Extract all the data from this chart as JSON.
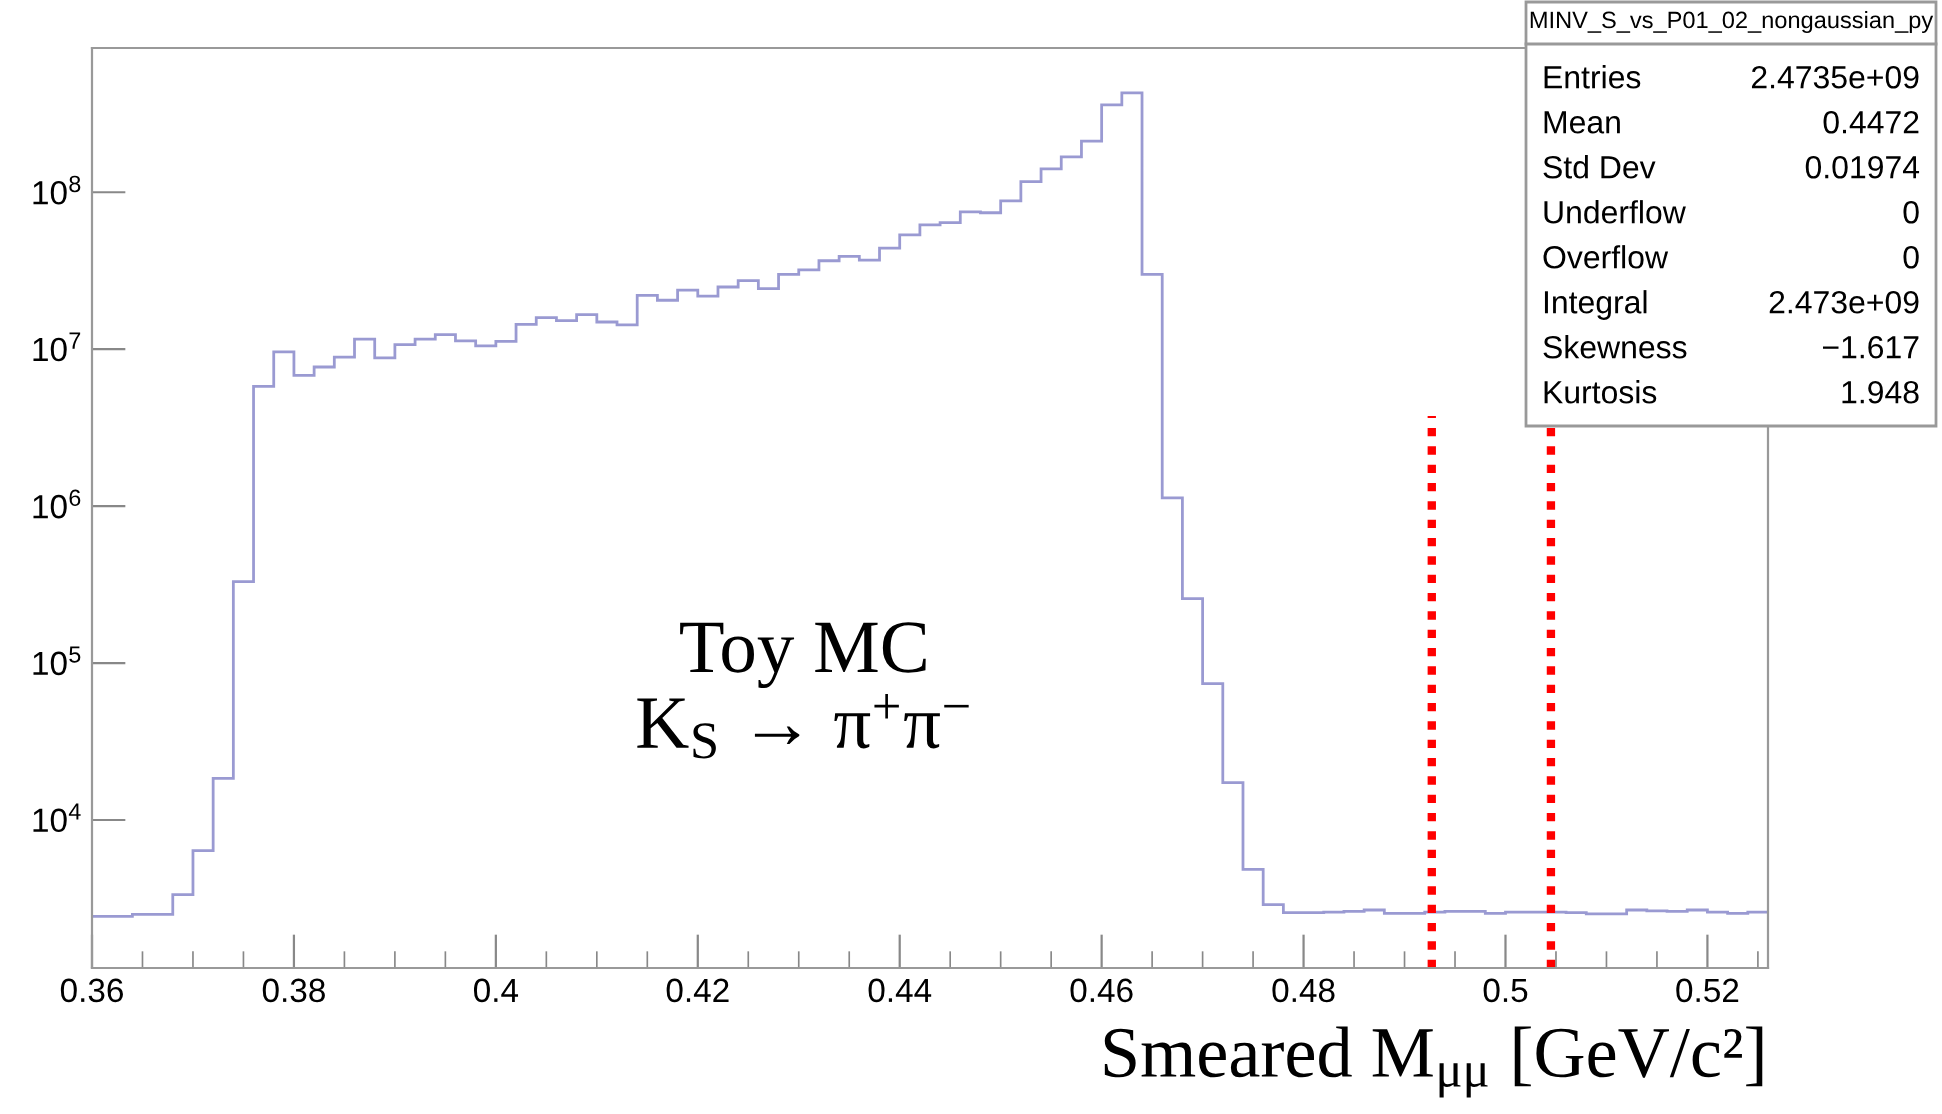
{
  "chart_data": {
    "type": "histogram",
    "xlabel": "Smeared M$_{μμ}$ [GeV/c²]",
    "bins": [
      0.36,
      0.362,
      0.364,
      0.366,
      0.368,
      0.37,
      0.372,
      0.374,
      0.376,
      0.378,
      0.38,
      0.382,
      0.384,
      0.386,
      0.388,
      0.39,
      0.392,
      0.394,
      0.396,
      0.398,
      0.4,
      0.402,
      0.404,
      0.406,
      0.408,
      0.41,
      0.412,
      0.414,
      0.416,
      0.418,
      0.42,
      0.422,
      0.424,
      0.426,
      0.428,
      0.43,
      0.432,
      0.434,
      0.436,
      0.438,
      0.44,
      0.442,
      0.444,
      0.446,
      0.448,
      0.45,
      0.452,
      0.454,
      0.456,
      0.458,
      0.46,
      0.462,
      0.464,
      0.466,
      0.468,
      0.47,
      0.472,
      0.474,
      0.476,
      0.478,
      0.48,
      0.482,
      0.484,
      0.486,
      0.488,
      0.49,
      0.492,
      0.494,
      0.496,
      0.498,
      0.5,
      0.502,
      0.504,
      0.506,
      0.508,
      0.51,
      0.512,
      0.514,
      0.516,
      0.518,
      0.52,
      0.522,
      0.524,
      0.526
    ],
    "values": [
      2430,
      2430,
      2500,
      2500,
      3350,
      6380,
      18400,
      330000,
      5800000,
      9600000,
      6800000,
      7700000,
      8900000,
      11600000,
      8800000,
      10700000,
      11600000,
      12400000,
      11300000,
      10500000,
      11200000,
      14400000,
      15900000,
      15200000,
      16600000,
      14900000,
      14300000,
      22000000,
      20500000,
      23800000,
      21800000,
      24900000,
      27300000,
      24300000,
      30000000,
      32000000,
      36600000,
      39000000,
      36900000,
      44000000,
      53500000,
      62000000,
      64000000,
      75000000,
      74000000,
      88000000,
      117000000,
      141000000,
      168000000,
      212000000,
      360000000,
      430000000,
      30000000,
      1130000,
      257000,
      74000,
      17300,
      4850,
      2890,
      2570,
      2570,
      2590,
      2620,
      2670,
      2540,
      2540,
      2590,
      2620,
      2620,
      2540,
      2590,
      2590,
      2590,
      2570,
      2520,
      2520,
      2670,
      2640,
      2620,
      2670,
      2590,
      2540,
      2590
    ],
    "color": "#9a9ad2",
    "log": "y",
    "xlim": [
      0.36,
      0.526
    ],
    "ylim": [
      1140,
      830000000
    ],
    "xticks": [
      0.36,
      0.38,
      {
        "value": 0.4,
        "label": "0.4"
      },
      0.42,
      0.44,
      0.46,
      0.48,
      {
        "value": 0.5,
        "label": "0.5"
      },
      0.52
    ],
    "yticks": [
      {
        "value": 10000,
        "label": "10$^{4}$"
      },
      {
        "value": 100000,
        "label": "10$^{5}$"
      },
      {
        "value": 1000000,
        "label": "10$^{6}$"
      },
      {
        "value": 10000000,
        "label": "10$^{7}$"
      },
      {
        "value": 100000000,
        "label": "10$^{8}$"
      }
    ],
    "grid": false,
    "legend": false,
    "ref_lines": [
      {
        "axis": "x",
        "value": 0.4927,
        "color": "#ff0000",
        "line_style": "dotted"
      },
      {
        "axis": "x",
        "value": 0.5045,
        "color": "#ff0000",
        "line_style": "dotted"
      }
    ],
    "annotations": [
      "Toy MC\nK$_{S}$ → π$^{+}$π$^{−}$",
      "MINV_S_vs_P01_02_nongaussian_py",
      "Entries\t2.4735e+09",
      "Mean\t0.4472",
      "Std Dev\t0.01974",
      "Underflow\t0",
      "Overflow\t0",
      "Integral\t2.473e+09",
      "Skewness\t−1.617",
      "Kurtosis\t1.948"
    ]
  }
}
